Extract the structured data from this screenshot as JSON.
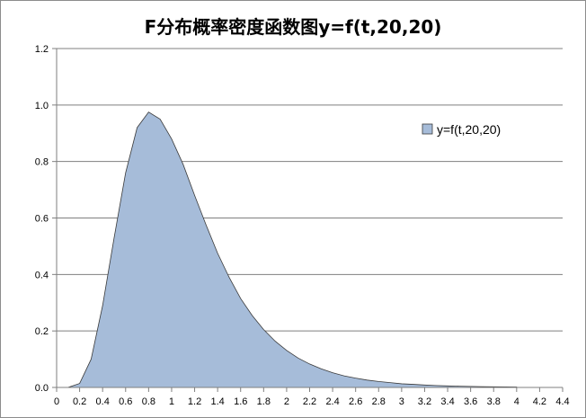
{
  "chart_data": {
    "type": "area",
    "title": "F分布概率密度函数图y=f(t,20,20)",
    "xlabel": "",
    "ylabel": "",
    "xlim": [
      0,
      4.4
    ],
    "ylim": [
      0,
      1.2
    ],
    "x_ticks": [
      "0",
      "0.2",
      "0.4",
      "0.6",
      "0.8",
      "1",
      "1.2",
      "1.4",
      "1.6",
      "1.8",
      "2",
      "2.2",
      "2.4",
      "2.6",
      "2.8",
      "3",
      "3.2",
      "3.4",
      "3.6",
      "3.8",
      "4",
      "4.2",
      "4.4"
    ],
    "y_ticks": [
      "0.0",
      "0.2",
      "0.4",
      "0.6",
      "0.8",
      "1.0",
      "1.2"
    ],
    "grid": "horizontal",
    "legend_position": "right",
    "series": [
      {
        "name": "y=f(t,20,20)",
        "color": "#a6bcd9",
        "edge_color": "#3a3a3a",
        "x": [
          0.1,
          0.2,
          0.3,
          0.4,
          0.5,
          0.6,
          0.7,
          0.8,
          0.9,
          1.0,
          1.1,
          1.2,
          1.3,
          1.4,
          1.5,
          1.6,
          1.7,
          1.8,
          1.9,
          2.0,
          2.1,
          2.2,
          2.3,
          2.4,
          2.5,
          2.6,
          2.7,
          2.8,
          2.9,
          3.0,
          3.1,
          3.2,
          3.3,
          3.4,
          3.5,
          3.6,
          3.7,
          3.8,
          3.9,
          4.0
        ],
        "y": [
          0.0002,
          0.014,
          0.1,
          0.29,
          0.53,
          0.76,
          0.92,
          0.975,
          0.95,
          0.88,
          0.79,
          0.68,
          0.575,
          0.475,
          0.39,
          0.315,
          0.255,
          0.205,
          0.164,
          0.131,
          0.104,
          0.083,
          0.066,
          0.052,
          0.041,
          0.033,
          0.026,
          0.021,
          0.017,
          0.013,
          0.011,
          0.0085,
          0.0068,
          0.0054,
          0.0043,
          0.0035,
          0.0028,
          0.0022,
          0.0018,
          0.0014
        ]
      }
    ]
  }
}
